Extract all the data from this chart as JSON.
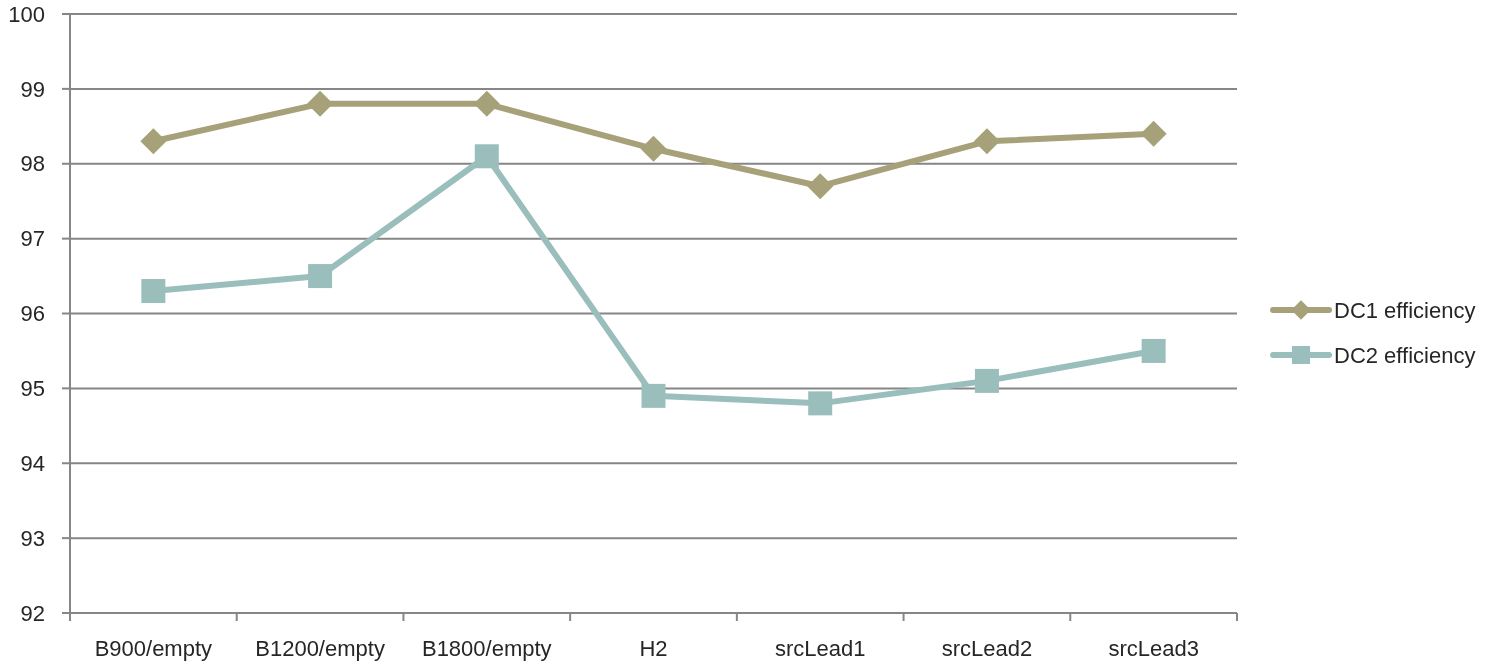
{
  "chart_data": {
    "type": "line",
    "categories": [
      "B900/empty",
      "B1200/empty",
      "B1800/empty",
      "H2",
      "srcLead1",
      "srcLead2",
      "srcLead3"
    ],
    "series": [
      {
        "name": "DC1 efficiency",
        "color": "#a6a178",
        "marker": "diamond",
        "values": [
          98.3,
          98.8,
          98.8,
          98.2,
          97.7,
          98.3,
          98.4
        ]
      },
      {
        "name": "DC2 efficiency",
        "color": "#9abebc",
        "marker": "square",
        "values": [
          96.3,
          96.5,
          98.1,
          94.9,
          94.8,
          95.1,
          95.5
        ]
      }
    ],
    "ylim": [
      92,
      100
    ],
    "yticks": [
      92,
      93,
      94,
      95,
      96,
      97,
      98,
      99,
      100
    ],
    "grid": "y",
    "legend": "right",
    "line_style": "solid"
  }
}
